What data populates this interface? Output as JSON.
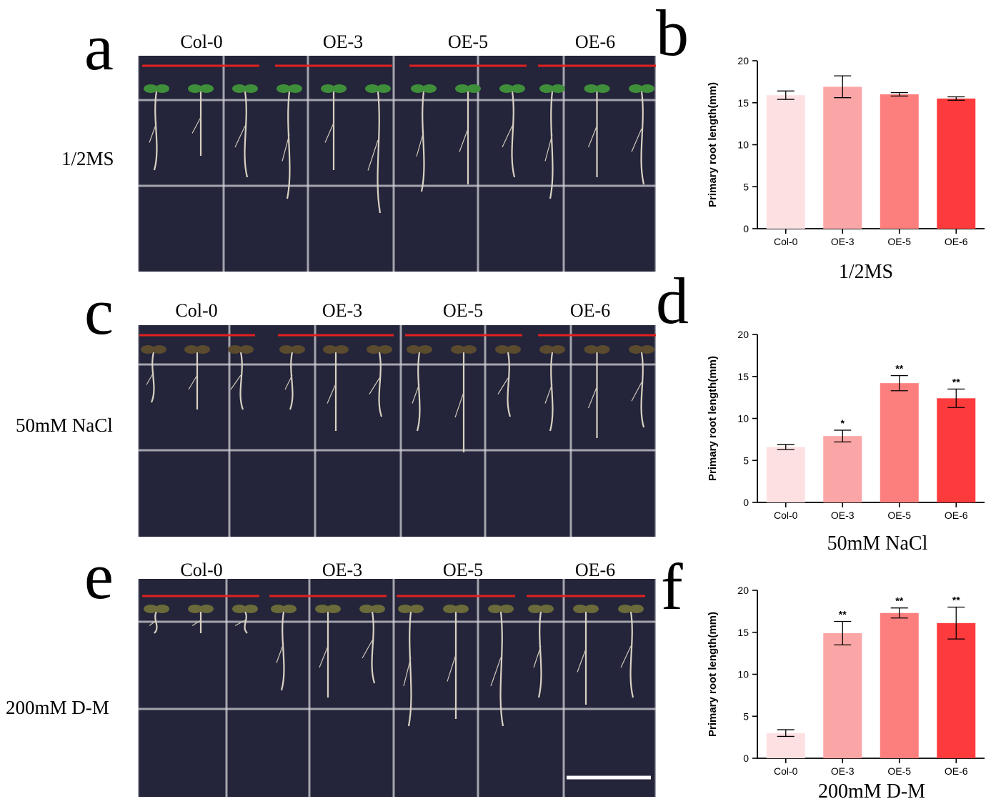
{
  "panels": {
    "a": "a",
    "b": "b",
    "c": "c",
    "d": "d",
    "e": "e",
    "f": "f"
  },
  "photos": [
    {
      "condition": "1/2MS",
      "genotypes": [
        "Col-0",
        "OE-3",
        "OE-5",
        "OE-6"
      ]
    },
    {
      "condition": "50mM NaCl",
      "genotypes": [
        "Col-0",
        "OE-3",
        "OE-5",
        "OE-6"
      ]
    },
    {
      "condition": "200mM D-M",
      "genotypes": [
        "Col-0",
        "OE-3",
        "OE-5",
        "OE-6"
      ]
    }
  ],
  "colors": {
    "bars": [
      "#fde1e2",
      "#fba6a6",
      "#fc7f7e",
      "#fd3b3c"
    ],
    "plate": "#24243a",
    "guide_line": "#e0211f",
    "scale_bar": "#ffffff"
  },
  "chart_data": [
    {
      "type": "bar",
      "title": "",
      "xlabel": "1/2MS",
      "ylabel": "Primary root length(mm)",
      "categories": [
        "Col-0",
        "OE-3",
        "OE-5",
        "OE-6"
      ],
      "values": [
        15.9,
        16.9,
        16.0,
        15.5
      ],
      "errors": [
        0.5,
        1.3,
        0.2,
        0.2
      ],
      "significance": [
        "",
        "",
        "",
        ""
      ],
      "ylim": [
        0,
        20
      ],
      "yticks": [
        0,
        5,
        10,
        15,
        20
      ]
    },
    {
      "type": "bar",
      "title": "",
      "xlabel": "50mM NaCl",
      "ylabel": "Primary root length(mm)",
      "categories": [
        "Col-0",
        "OE-3",
        "OE-5",
        "OE-6"
      ],
      "values": [
        6.6,
        7.9,
        14.2,
        12.4
      ],
      "errors": [
        0.3,
        0.7,
        0.9,
        1.1
      ],
      "significance": [
        "",
        "*",
        "**",
        "**"
      ],
      "ylim": [
        0,
        20
      ],
      "yticks": [
        0,
        5,
        10,
        15,
        20
      ]
    },
    {
      "type": "bar",
      "title": "",
      "xlabel": "200mM D-M",
      "ylabel": "Primary root length(mm)",
      "categories": [
        "Col-0",
        "OE-3",
        "OE-5",
        "OE-6"
      ],
      "values": [
        3.0,
        14.9,
        17.3,
        16.1
      ],
      "errors": [
        0.4,
        1.4,
        0.6,
        1.9
      ],
      "significance": [
        "",
        "**",
        "**",
        "**"
      ],
      "ylim": [
        0,
        20
      ],
      "yticks": [
        0,
        5,
        10,
        15,
        20
      ]
    }
  ]
}
